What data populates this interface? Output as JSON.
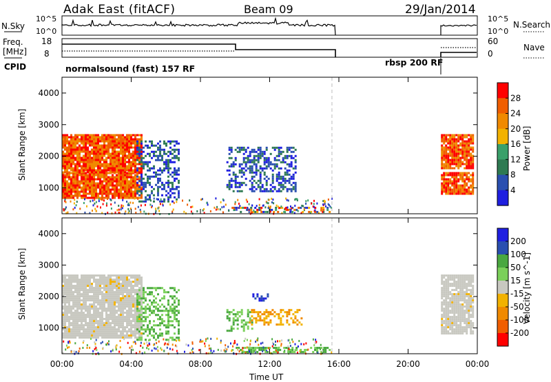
{
  "header": {
    "station": "Adak East (fitACF)",
    "beam": "Beam 09",
    "date": "29/Jan/2014"
  },
  "panels": {
    "nsky_label": "N.Sky",
    "nsky_ticks": [
      "10^5",
      "10^0"
    ],
    "nsearch_label": "N.Search",
    "freq_label_1": "Freq.",
    "freq_label_2": "[MHz]",
    "freq_ticks": [
      "18",
      "8"
    ],
    "nave_label": "Nave",
    "nave_ticks": [
      "60",
      "0"
    ],
    "cpid_label": "CPID",
    "cpid_1": "normalsound (fast) 157 RF",
    "cpid_2": "rbsp 200 RF"
  },
  "colors": {
    "power_scale": [
      "#1f1fe0",
      "#2a4fb0",
      "#2e7a52",
      "#3aa06a",
      "#f2b200",
      "#f08a00",
      "#f05e00",
      "#ff0000"
    ],
    "velocity_scale": [
      "#ff0000",
      "#f05e00",
      "#f08a00",
      "#f2b200",
      "#c8c8c0",
      "#7bd05a",
      "#4aa840",
      "#2a4fb0",
      "#1f1fe0"
    ]
  },
  "chart_data": [
    {
      "type": "heatmap",
      "name": "power",
      "xlabel": "Time UT",
      "ylabel": "Slant Range [km]",
      "x_ticks": [
        "00:00",
        "04:00",
        "08:00",
        "12:00",
        "16:00",
        "20:00",
        "00:00"
      ],
      "x_range_hours": [
        0,
        24
      ],
      "y_ticks": [
        1000,
        2000,
        3000,
        4000
      ],
      "y_range_km": [
        180,
        4500
      ],
      "colorbar_label": "Power [dB]",
      "colorbar_ticks": [
        4,
        8,
        12,
        16,
        20,
        24,
        28
      ],
      "regions": [
        {
          "t0": 0.0,
          "t1": 4.6,
          "r0": 700,
          "r1": 1500,
          "level": "high"
        },
        {
          "t0": 0.0,
          "t1": 4.6,
          "r0": 1500,
          "r1": 2700,
          "level": "high"
        },
        {
          "t0": 4.3,
          "t1": 6.8,
          "r0": 600,
          "r1": 2500,
          "level": "low"
        },
        {
          "t0": 9.5,
          "t1": 13.5,
          "r0": 900,
          "r1": 2300,
          "level": "low"
        },
        {
          "t0": 9.8,
          "t1": 15.5,
          "r0": 250,
          "r1": 400,
          "level": "mixed"
        },
        {
          "t0": 21.9,
          "t1": 23.8,
          "r0": 800,
          "r1": 1500,
          "level": "high"
        },
        {
          "t0": 21.9,
          "t1": 23.8,
          "r0": 1600,
          "r1": 2700,
          "level": "high"
        }
      ]
    },
    {
      "type": "heatmap",
      "name": "velocity",
      "xlabel": "Time UT",
      "ylabel": "Slant Range [km]",
      "x_ticks": [
        "00:00",
        "04:00",
        "08:00",
        "12:00",
        "16:00",
        "20:00",
        "00:00"
      ],
      "x_range_hours": [
        0,
        24
      ],
      "y_ticks": [
        1000,
        2000,
        3000,
        4000
      ],
      "y_range_km": [
        180,
        4500
      ],
      "colorbar_label": "Velocity [m s^-1]",
      "colorbar_ticks": [
        200,
        100,
        50,
        15,
        -15,
        -50,
        -100,
        -200
      ],
      "regions": [
        {
          "t0": 0.0,
          "t1": 4.6,
          "r0": 700,
          "r1": 2700,
          "level": "ground"
        },
        {
          "t0": 4.3,
          "t1": 6.8,
          "r0": 600,
          "r1": 2300,
          "level": "positive"
        },
        {
          "t0": 9.5,
          "t1": 11.0,
          "r0": 900,
          "r1": 1600,
          "level": "positive"
        },
        {
          "t0": 10.8,
          "t1": 13.8,
          "r0": 1100,
          "r1": 1600,
          "level": "negative"
        },
        {
          "t0": 11.0,
          "t1": 12.0,
          "r0": 1850,
          "r1": 2100,
          "level": "fast-positive"
        },
        {
          "t0": 9.8,
          "t1": 15.5,
          "r0": 250,
          "r1": 400,
          "level": "positive"
        },
        {
          "t0": 21.9,
          "t1": 23.8,
          "r0": 800,
          "r1": 2700,
          "level": "ground"
        }
      ]
    }
  ]
}
